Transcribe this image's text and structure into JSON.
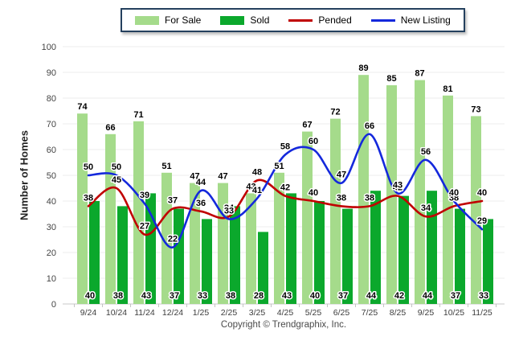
{
  "footer": {
    "copyright": "Copyright © Trendgraphix, Inc."
  },
  "legend": {
    "position": "top"
  },
  "colors": {
    "for_sale": "#a5db8b",
    "sold": "#0ba82c",
    "pended": "#c00000",
    "new_listing": "#1428dc",
    "grid": "#ececec",
    "baseline": "#c8c8c8",
    "legend_border": "#24405e"
  },
  "chart_data": {
    "type": "bar",
    "title": "",
    "xlabel": "",
    "ylabel": "Number of Homes",
    "ylim": [
      0,
      100
    ],
    "ytick_interval": 10,
    "grid": true,
    "legend_position": "top",
    "categories": [
      "9/24",
      "10/24",
      "11/24",
      "12/24",
      "1/25",
      "2/25",
      "3/25",
      "4/25",
      "5/25",
      "6/25",
      "7/25",
      "8/25",
      "9/25",
      "10/25",
      "11/25"
    ],
    "series": [
      {
        "name": "For Sale",
        "render": "bar",
        "color": "#a5db8b",
        "values": [
          74,
          66,
          71,
          51,
          47,
          47,
          43,
          51,
          67,
          72,
          89,
          85,
          87,
          81,
          73
        ]
      },
      {
        "name": "Sold",
        "render": "bar",
        "color": "#0ba82c",
        "values": [
          40,
          38,
          43,
          37,
          33,
          38,
          28,
          43,
          40,
          37,
          44,
          42,
          44,
          37,
          33
        ]
      },
      {
        "name": "Pended",
        "render": "line",
        "color": "#c00000",
        "values": [
          38,
          45,
          27,
          37,
          36,
          34,
          48,
          42,
          40,
          38,
          38,
          42,
          34,
          38,
          40
        ]
      },
      {
        "name": "New Listing",
        "render": "line",
        "color": "#1428dc",
        "values": [
          50,
          50,
          39,
          22,
          44,
          33,
          41,
          58,
          60,
          47,
          66,
          43,
          56,
          40,
          29
        ]
      }
    ]
  }
}
